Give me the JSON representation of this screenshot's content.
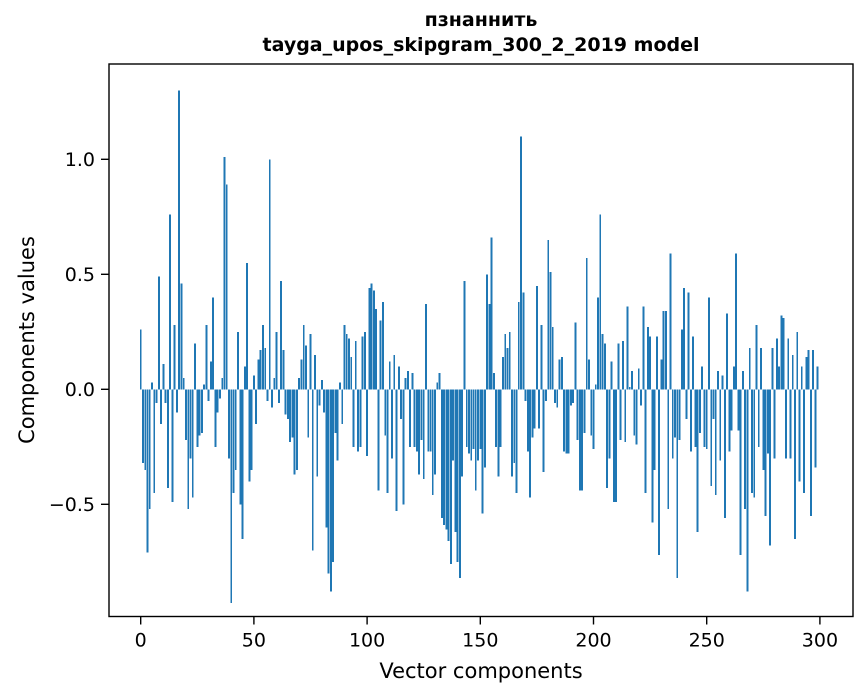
{
  "figure": {
    "title_line1": "пзнаннить",
    "title_line2": "tayga_upos_skipgram_300_2_2019 model",
    "xlabel": "Vector components",
    "ylabel": "Components values"
  },
  "chart_data": {
    "type": "bar",
    "title": "пзнаннить",
    "subtitle": "tayga_upos_skipgram_300_2_2019 model",
    "xlabel": "Vector components",
    "ylabel": "Components values",
    "x_start": 0,
    "x_step": 1,
    "n_bars": 300,
    "x_ticks": [
      0,
      50,
      100,
      150,
      200,
      250,
      300
    ],
    "y_ticks": [
      1.0,
      0.5,
      0.0,
      -0.5
    ],
    "y_tick_labels": [
      "1.0",
      "0.5",
      "0.0",
      "−0.5"
    ],
    "xlim": [
      -15,
      315
    ],
    "ylim": [
      -0.99,
      1.42
    ],
    "grid": false,
    "legend": null,
    "bar_color": "#1f77b4",
    "axis_color": "#000000",
    "values": [
      0.26,
      -0.32,
      -0.35,
      -0.71,
      -0.52,
      0.03,
      -0.45,
      -0.06,
      0.49,
      -0.15,
      0.11,
      -0.06,
      -0.43,
      0.76,
      -0.49,
      0.28,
      -0.1,
      1.3,
      0.46,
      0.05,
      -0.22,
      -0.52,
      -0.3,
      -0.47,
      0.2,
      -0.25,
      -0.2,
      -0.19,
      0.02,
      0.28,
      -0.05,
      0.12,
      0.4,
      -0.25,
      -0.1,
      -0.04,
      0.05,
      1.01,
      0.89,
      -0.3,
      -0.93,
      -0.45,
      -0.35,
      0.25,
      -0.5,
      -0.65,
      0.1,
      0.55,
      -0.4,
      -0.35,
      0.06,
      -0.15,
      0.13,
      0.17,
      0.28,
      0.18,
      -0.05,
      1.0,
      -0.08,
      0.05,
      0.25,
      -0.06,
      0.47,
      0.17,
      -0.11,
      -0.13,
      -0.23,
      -0.21,
      -0.37,
      -0.35,
      0.05,
      0.13,
      0.28,
      0.19,
      -0.21,
      0.24,
      -0.7,
      0.15,
      -0.38,
      -0.07,
      0.04,
      -0.1,
      -0.6,
      -0.8,
      -0.88,
      -0.75,
      -0.19,
      -0.31,
      0.03,
      -0.15,
      0.28,
      0.24,
      0.22,
      0.14,
      -0.25,
      0.21,
      -0.27,
      -0.25,
      0.23,
      0.25,
      -0.29,
      0.44,
      0.46,
      0.43,
      0.35,
      -0.44,
      0.3,
      0.38,
      -0.2,
      -0.45,
      0.12,
      -0.3,
      0.15,
      -0.53,
      0.1,
      -0.13,
      -0.5,
      0.05,
      0.08,
      -0.25,
      0.07,
      -0.25,
      -0.27,
      -0.37,
      -0.22,
      -0.39,
      0.37,
      -0.27,
      -0.27,
      -0.46,
      -0.37,
      0.03,
      0.07,
      -0.56,
      -0.59,
      -0.61,
      -0.66,
      -0.76,
      -0.31,
      -0.62,
      -0.75,
      -0.82,
      -0.38,
      0.47,
      -0.25,
      -0.28,
      -0.31,
      -0.26,
      -0.44,
      -0.31,
      -0.26,
      -0.54,
      -0.34,
      0.5,
      0.37,
      0.66,
      0.07,
      -0.25,
      -0.38,
      -0.25,
      0.14,
      0.24,
      0.18,
      0.25,
      -0.38,
      -0.32,
      -0.45,
      0.38,
      1.1,
      0.42,
      -0.05,
      -0.27,
      -0.47,
      -0.21,
      -0.17,
      0.45,
      -0.17,
      0.28,
      -0.36,
      -0.05,
      0.65,
      0.51,
      0.27,
      -0.06,
      -0.08,
      0.13,
      0.14,
      -0.27,
      -0.28,
      -0.28,
      -0.07,
      -0.06,
      0.29,
      -0.22,
      -0.44,
      -0.44,
      -0.19,
      0.57,
      0.13,
      -0.2,
      -0.26,
      0.02,
      0.4,
      0.76,
      0.24,
      0.2,
      -0.43,
      -0.3,
      0.12,
      -0.49,
      -0.49,
      0.2,
      -0.22,
      0.21,
      -0.23,
      0.36,
      0.01,
      0.08,
      -0.2,
      -0.24,
      0.09,
      -0.07,
      0.36,
      -0.45,
      0.27,
      0.23,
      -0.58,
      -0.35,
      0.23,
      -0.72,
      0.13,
      0.34,
      0.34,
      -0.52,
      0.59,
      -0.3,
      -0.21,
      -0.82,
      -0.22,
      0.26,
      0.44,
      -0.13,
      0.42,
      -0.27,
      0.23,
      -0.25,
      -0.62,
      -0.19,
      0.1,
      -0.25,
      -0.26,
      0.4,
      -0.42,
      -0.13,
      -0.46,
      0.08,
      -0.31,
      0.06,
      -0.56,
      0.33,
      -0.27,
      -0.18,
      0.1,
      0.59,
      -0.18,
      -0.72,
      0.08,
      -0.52,
      -0.88,
      0.18,
      -0.45,
      -0.47,
      0.28,
      -0.25,
      0.18,
      -0.35,
      -0.55,
      -0.28,
      -0.68,
      0.18,
      -0.3,
      0.22,
      0.1,
      0.32,
      0.31,
      -0.3,
      0.22,
      -0.3,
      0.15,
      -0.65,
      0.25,
      -0.4,
      0.1,
      -0.45,
      0.14,
      0.17,
      -0.55,
      0.17,
      -0.34,
      0.1
    ]
  }
}
